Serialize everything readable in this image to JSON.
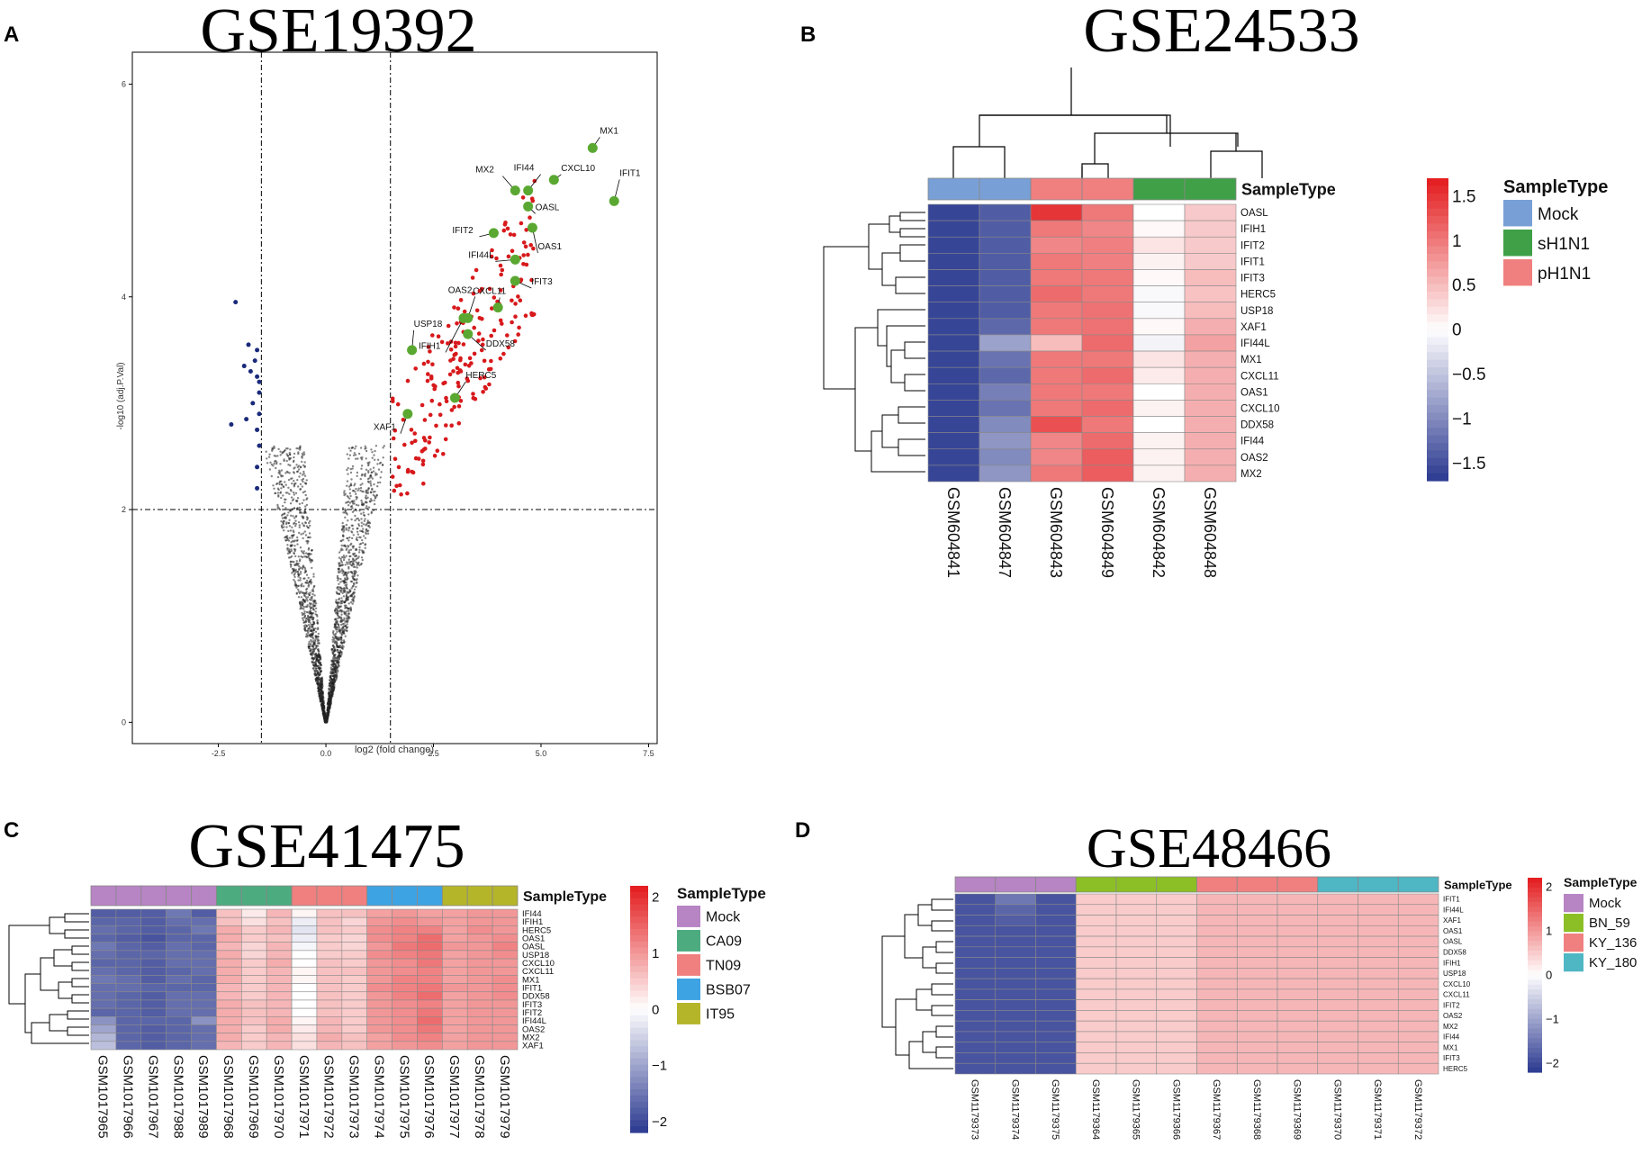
{
  "panels": {
    "A": {
      "letter": "A",
      "title": "GSE19392"
    },
    "B": {
      "letter": "B",
      "title": "GSE24533"
    },
    "C": {
      "letter": "C",
      "title": "GSE41475"
    },
    "D": {
      "letter": "D",
      "title": "GSE48466"
    }
  },
  "colors": {
    "up": "#d7191c",
    "down": "#1a2a7a",
    "ns": "#222222",
    "highlight": "#5aa832",
    "heat_low": "#2b3990",
    "heat_mid": "#ffffff",
    "heat_high": "#e31a1c"
  },
  "chart_data": [
    {
      "id": "A",
      "type": "scatter",
      "title": "GSE19392",
      "xlabel": "log2 (fold change)",
      "ylabel": "-log10 (adj.P.Val)",
      "xlim": [
        -4.5,
        7.7
      ],
      "ylim": [
        -0.2,
        6.3
      ],
      "x_ticks": [
        -2.5,
        0.0,
        2.5,
        5.0,
        7.5
      ],
      "x_tick_labels": [
        "-2.5",
        "0.0",
        "2.5",
        "5.0",
        "7.5"
      ],
      "y_ticks": [
        0,
        2,
        4,
        6
      ],
      "thresholds": {
        "x": [
          -1.5,
          1.5
        ],
        "y": 2
      },
      "labeled_genes": [
        {
          "gene": "MX1",
          "x": 6.2,
          "y": 5.4
        },
        {
          "gene": "IFIT1",
          "x": 6.7,
          "y": 4.9
        },
        {
          "gene": "CXCL10",
          "x": 5.3,
          "y": 5.1
        },
        {
          "gene": "MX2",
          "x": 4.4,
          "y": 5.0
        },
        {
          "gene": "IFI44",
          "x": 4.7,
          "y": 5.0
        },
        {
          "gene": "OASL",
          "x": 4.7,
          "y": 4.85
        },
        {
          "gene": "IFIT2",
          "x": 3.9,
          "y": 4.6
        },
        {
          "gene": "OAS1",
          "x": 4.8,
          "y": 4.65
        },
        {
          "gene": "IFI44L",
          "x": 4.4,
          "y": 4.35
        },
        {
          "gene": "IFIT3",
          "x": 4.4,
          "y": 4.15
        },
        {
          "gene": "CXCL11",
          "x": 4.0,
          "y": 3.9
        },
        {
          "gene": "OAS2",
          "x": 3.3,
          "y": 3.8
        },
        {
          "gene": "USP18",
          "x": 2.0,
          "y": 3.5
        },
        {
          "gene": "DDX58",
          "x": 3.3,
          "y": 3.65
        },
        {
          "gene": "IFIH1",
          "x": 3.2,
          "y": 3.8
        },
        {
          "gene": "HERC5",
          "x": 3.0,
          "y": 3.05
        },
        {
          "gene": "XAF1",
          "x": 1.9,
          "y": 2.9
        }
      ],
      "down_points": [
        [
          -2.1,
          3.95
        ],
        [
          -1.8,
          3.55
        ],
        [
          -1.6,
          3.5
        ],
        [
          -1.9,
          3.35
        ],
        [
          -1.75,
          3.3
        ],
        [
          -1.6,
          3.25
        ],
        [
          -1.55,
          3.2
        ],
        [
          -1.7,
          3.0
        ],
        [
          -1.55,
          2.9
        ],
        [
          -1.85,
          2.85
        ],
        [
          -2.2,
          2.8
        ],
        [
          -1.6,
          2.75
        ],
        [
          -1.55,
          2.6
        ],
        [
          -1.6,
          2.4
        ],
        [
          -1.6,
          2.2
        ],
        [
          -1.55,
          3.1
        ],
        [
          -1.65,
          3.4
        ]
      ]
    },
    {
      "id": "B",
      "type": "heatmap",
      "title": "GSE24533",
      "annotation_title": "SampleType",
      "samples": [
        "GSM604841",
        "GSM604847",
        "GSM604843",
        "GSM604849",
        "GSM604842",
        "GSM604848"
      ],
      "sample_types": [
        "Mock",
        "Mock",
        "pH1N1",
        "pH1N1",
        "sH1N1",
        "sH1N1"
      ],
      "legend_types": [
        {
          "name": "Mock",
          "color": "#78a0d6"
        },
        {
          "name": "sH1N1",
          "color": "#3fa047"
        },
        {
          "name": "pH1N1",
          "color": "#f07f7f"
        }
      ],
      "genes": [
        "OASL",
        "IFIH1",
        "IFIT2",
        "IFIT1",
        "IFIT3",
        "HERC5",
        "USP18",
        "XAF1",
        "IFI44L",
        "MX1",
        "CXCL11",
        "OAS1",
        "CXCL10",
        "DDX58",
        "IFI44",
        "OAS2",
        "MX2"
      ],
      "values": [
        [
          -1.6,
          -1.4,
          1.5,
          1.0,
          0.0,
          0.4
        ],
        [
          -1.6,
          -1.4,
          1.0,
          0.9,
          0.05,
          0.4
        ],
        [
          -1.6,
          -1.4,
          0.9,
          0.95,
          0.2,
          0.4
        ],
        [
          -1.6,
          -1.4,
          1.0,
          0.95,
          0.1,
          0.4
        ],
        [
          -1.6,
          -1.4,
          1.0,
          1.0,
          0.05,
          0.5
        ],
        [
          -1.6,
          -1.4,
          1.1,
          1.0,
          -0.05,
          0.45
        ],
        [
          -1.6,
          -1.4,
          1.0,
          1.05,
          -0.05,
          0.5
        ],
        [
          -1.6,
          -1.3,
          1.0,
          1.05,
          0.05,
          0.6
        ],
        [
          -1.6,
          -0.8,
          0.5,
          1.1,
          -0.1,
          0.7
        ],
        [
          -1.6,
          -1.2,
          1.0,
          1.0,
          0.2,
          0.6
        ],
        [
          -1.6,
          -1.3,
          1.0,
          1.1,
          0.15,
          0.6
        ],
        [
          -1.6,
          -1.1,
          1.0,
          1.0,
          0.0,
          0.6
        ],
        [
          -1.6,
          -1.2,
          1.0,
          1.1,
          0.1,
          0.6
        ],
        [
          -1.6,
          -1.0,
          1.3,
          1.0,
          0.0,
          0.6
        ],
        [
          -1.6,
          -0.9,
          0.9,
          1.1,
          0.1,
          0.6
        ],
        [
          -1.6,
          -1.0,
          0.9,
          1.2,
          0.1,
          0.6
        ],
        [
          -1.6,
          -0.9,
          1.0,
          1.2,
          0.1,
          0.6
        ]
      ],
      "scale_ticks": [
        1.5,
        1,
        0.5,
        0,
        -0.5,
        -1,
        -1.5
      ],
      "scale_tick_labels": [
        "1.5",
        "1",
        "0.5",
        "0",
        "−0.5",
        "−1",
        "−1.5"
      ],
      "scale_range": [
        -1.7,
        1.7
      ]
    },
    {
      "id": "C",
      "type": "heatmap",
      "title": "GSE41475",
      "annotation_title": "SampleType",
      "samples": [
        "GSM1017965",
        "GSM1017966",
        "GSM1017967",
        "GSM1017988",
        "GSM1017989",
        "GSM1017968",
        "GSM1017969",
        "GSM1017970",
        "GSM1017971",
        "GSM1017972",
        "GSM1017973",
        "GSM1017974",
        "GSM1017975",
        "GSM1017976",
        "GSM1017977",
        "GSM1017978",
        "GSM1017979"
      ],
      "sample_types": [
        "Mock",
        "Mock",
        "Mock",
        "Mock",
        "Mock",
        "CA09",
        "CA09",
        "CA09",
        "TN09",
        "TN09",
        "TN09",
        "BSB07",
        "BSB07",
        "BSB07",
        "IT95",
        "IT95",
        "IT95"
      ],
      "legend_types": [
        {
          "name": "Mock",
          "color": "#b784c4"
        },
        {
          "name": "CA09",
          "color": "#4dab80"
        },
        {
          "name": "TN09",
          "color": "#f07f7f"
        },
        {
          "name": "BSB07",
          "color": "#3ea3e3"
        },
        {
          "name": "IT95",
          "color": "#b5b52a"
        }
      ],
      "genes": [
        "IFI44",
        "IFIH1",
        "HERC5",
        "OAS1",
        "OASL",
        "USP18",
        "CXCL10",
        "CXCL11",
        "MX1",
        "IFIT1",
        "DDX58",
        "IFIT3",
        "IFIT2",
        "IFI44L",
        "OAS2",
        "MX2",
        "XAF1"
      ],
      "values": [
        [
          -1.8,
          -1.8,
          -1.8,
          -1.5,
          -1.8,
          0.6,
          0.2,
          0.7,
          0.1,
          0.6,
          0.6,
          0.9,
          1.0,
          0.9,
          0.9,
          1.0,
          1.0
        ],
        [
          -1.7,
          -1.7,
          -1.8,
          -1.6,
          -1.6,
          0.6,
          0.3,
          0.6,
          -0.2,
          0.6,
          0.4,
          1.0,
          1.1,
          1.0,
          0.9,
          1.0,
          1.0
        ],
        [
          -1.6,
          -1.7,
          -1.8,
          -1.7,
          -1.5,
          0.8,
          0.5,
          0.7,
          -0.3,
          0.6,
          0.5,
          1.1,
          1.2,
          1.2,
          0.9,
          1.1,
          1.0
        ],
        [
          -1.7,
          -1.8,
          -1.9,
          -1.7,
          -1.7,
          0.8,
          0.5,
          0.6,
          -0.2,
          0.5,
          0.4,
          1.1,
          1.2,
          1.4,
          0.9,
          1.0,
          1.1
        ],
        [
          -1.5,
          -1.7,
          -1.8,
          -1.6,
          -1.7,
          0.7,
          0.4,
          0.7,
          -0.1,
          0.5,
          0.4,
          1.0,
          1.3,
          1.4,
          1.0,
          1.0,
          1.2
        ],
        [
          -1.6,
          -1.7,
          -1.7,
          -1.6,
          -1.6,
          0.8,
          0.4,
          0.7,
          0.0,
          0.5,
          0.5,
          1.1,
          1.2,
          1.3,
          0.9,
          1.0,
          1.1
        ],
        [
          -1.7,
          -1.7,
          -1.8,
          -1.6,
          -1.6,
          0.8,
          0.5,
          0.8,
          0.0,
          0.6,
          0.5,
          1.0,
          1.1,
          1.3,
          0.9,
          1.0,
          1.0
        ],
        [
          -1.6,
          -1.7,
          -1.8,
          -1.7,
          -1.6,
          0.8,
          0.5,
          0.7,
          0.1,
          0.6,
          0.6,
          1.0,
          1.1,
          1.2,
          0.9,
          1.0,
          1.0
        ],
        [
          -1.5,
          -1.6,
          -1.8,
          -1.6,
          -1.7,
          0.8,
          0.5,
          0.7,
          0.1,
          0.6,
          0.5,
          1.0,
          1.2,
          1.2,
          0.9,
          1.0,
          1.1
        ],
        [
          -1.6,
          -1.6,
          -1.7,
          -1.7,
          -1.7,
          0.7,
          0.5,
          0.7,
          0.0,
          0.6,
          0.5,
          1.1,
          1.2,
          1.3,
          1.0,
          1.0,
          1.1
        ],
        [
          -1.6,
          -1.7,
          -1.8,
          -1.6,
          -1.6,
          0.7,
          0.5,
          0.7,
          0.0,
          0.6,
          0.5,
          1.0,
          1.2,
          1.4,
          0.9,
          1.0,
          1.1
        ],
        [
          -1.6,
          -1.7,
          -1.8,
          -1.6,
          -1.6,
          0.8,
          0.6,
          0.7,
          0.0,
          0.6,
          0.5,
          1.0,
          1.1,
          1.2,
          0.9,
          1.0,
          1.0
        ],
        [
          -1.7,
          -1.7,
          -1.8,
          -1.6,
          -1.6,
          0.8,
          0.6,
          0.7,
          0.0,
          0.6,
          0.5,
          1.0,
          1.1,
          1.3,
          0.9,
          1.0,
          1.0
        ],
        [
          -1.2,
          -1.7,
          -1.7,
          -1.7,
          -1.2,
          0.8,
          0.6,
          0.8,
          0.1,
          0.7,
          0.5,
          1.0,
          1.1,
          1.4,
          0.9,
          1.0,
          1.0
        ],
        [
          -1.0,
          -1.7,
          -1.8,
          -1.7,
          -1.6,
          0.8,
          0.5,
          0.8,
          0.2,
          0.7,
          0.5,
          1.0,
          1.1,
          1.3,
          0.9,
          1.0,
          1.0
        ],
        [
          -0.8,
          -1.7,
          -1.8,
          -1.7,
          -1.6,
          0.8,
          0.5,
          0.7,
          0.3,
          0.8,
          0.6,
          0.9,
          1.1,
          1.2,
          0.9,
          1.0,
          1.0
        ],
        [
          -0.7,
          -1.7,
          -1.8,
          -1.7,
          -1.6,
          0.7,
          0.5,
          0.7,
          0.3,
          0.7,
          0.6,
          0.9,
          1.0,
          1.1,
          0.9,
          1.0,
          1.0
        ]
      ],
      "scale_ticks": [
        2,
        1,
        0,
        -1,
        -2
      ],
      "scale_tick_labels": [
        "2",
        "1",
        "0",
        "−1",
        "−2"
      ],
      "scale_range": [
        -2.2,
        2.2
      ]
    },
    {
      "id": "D",
      "type": "heatmap",
      "title": "GSE48466",
      "annotation_title": "SampleType",
      "samples": [
        "GSM1179373",
        "GSM1179374",
        "GSM1179375",
        "GSM1179364",
        "GSM1179365",
        "GSM1179366",
        "GSM1179367",
        "GSM1179368",
        "GSM1179369",
        "GSM1179370",
        "GSM1179371",
        "GSM1179372"
      ],
      "sample_types": [
        "Mock",
        "Mock",
        "Mock",
        "BN_59",
        "BN_59",
        "BN_59",
        "KY_136",
        "KY_136",
        "KY_136",
        "KY_180",
        "KY_180",
        "KY_180"
      ],
      "legend_types": [
        {
          "name": "Mock",
          "color": "#b784c4"
        },
        {
          "name": "BN_59",
          "color": "#8cbf26"
        },
        {
          "name": "KY_136",
          "color": "#f07f7f"
        },
        {
          "name": "KY_180",
          "color": "#4fb6c4"
        }
      ],
      "genes": [
        "IFIT1",
        "IFI44L",
        "XAF1",
        "OAS1",
        "OASL",
        "DDX58",
        "IFIH1",
        "USP18",
        "CXCL10",
        "CXCL11",
        "IFIT2",
        "OAS2",
        "MX2",
        "IFI44",
        "MX1",
        "IFIT3",
        "HERC5"
      ],
      "values": [
        [
          -1.9,
          -1.5,
          -1.9,
          0.5,
          0.5,
          0.5,
          0.7,
          0.7,
          0.7,
          0.7,
          0.7,
          0.7
        ],
        [
          -1.9,
          -1.7,
          -1.9,
          0.5,
          0.5,
          0.5,
          0.7,
          0.7,
          0.7,
          0.7,
          0.7,
          0.7
        ],
        [
          -1.9,
          -1.8,
          -1.9,
          0.5,
          0.5,
          0.5,
          0.7,
          0.7,
          0.7,
          0.7,
          0.7,
          0.7
        ],
        [
          -1.9,
          -1.9,
          -1.9,
          0.5,
          0.5,
          0.5,
          0.7,
          0.7,
          0.7,
          0.7,
          0.7,
          0.7
        ],
        [
          -1.9,
          -1.9,
          -1.9,
          0.5,
          0.5,
          0.5,
          0.7,
          0.7,
          0.7,
          0.7,
          0.7,
          0.7
        ],
        [
          -1.9,
          -1.9,
          -1.9,
          0.5,
          0.5,
          0.5,
          0.7,
          0.7,
          0.7,
          0.7,
          0.7,
          0.7
        ],
        [
          -1.9,
          -1.9,
          -1.9,
          0.5,
          0.5,
          0.5,
          0.7,
          0.7,
          0.7,
          0.7,
          0.7,
          0.7
        ],
        [
          -1.9,
          -1.9,
          -1.9,
          0.5,
          0.5,
          0.5,
          0.7,
          0.7,
          0.7,
          0.7,
          0.7,
          0.7
        ],
        [
          -1.9,
          -1.9,
          -1.9,
          0.5,
          0.5,
          0.5,
          0.7,
          0.7,
          0.7,
          0.7,
          0.7,
          0.7
        ],
        [
          -1.9,
          -1.9,
          -1.9,
          0.5,
          0.5,
          0.5,
          0.7,
          0.7,
          0.7,
          0.7,
          0.7,
          0.7
        ],
        [
          -1.9,
          -1.9,
          -1.9,
          0.5,
          0.5,
          0.5,
          0.7,
          0.7,
          0.7,
          0.7,
          0.7,
          0.7
        ],
        [
          -1.9,
          -1.9,
          -1.9,
          0.5,
          0.5,
          0.5,
          0.7,
          0.7,
          0.7,
          0.7,
          0.7,
          0.7
        ],
        [
          -1.9,
          -1.9,
          -1.9,
          0.5,
          0.5,
          0.5,
          0.7,
          0.7,
          0.7,
          0.7,
          0.7,
          0.7
        ],
        [
          -1.9,
          -1.9,
          -1.9,
          0.5,
          0.5,
          0.5,
          0.7,
          0.7,
          0.7,
          0.7,
          0.7,
          0.7
        ],
        [
          -1.9,
          -1.9,
          -1.9,
          0.5,
          0.5,
          0.5,
          0.7,
          0.7,
          0.7,
          0.7,
          0.7,
          0.7
        ],
        [
          -1.9,
          -1.9,
          -1.9,
          0.5,
          0.5,
          0.5,
          0.7,
          0.7,
          0.7,
          0.7,
          0.7,
          0.7
        ],
        [
          -1.9,
          -1.9,
          -1.9,
          0.5,
          0.5,
          0.5,
          0.7,
          0.7,
          0.7,
          0.7,
          0.7,
          0.7
        ]
      ],
      "scale_ticks": [
        2,
        1,
        0,
        -1,
        -2
      ],
      "scale_tick_labels": [
        "2",
        "1",
        "0",
        "−1",
        "−2"
      ],
      "scale_range": [
        -2.2,
        2.2
      ]
    }
  ]
}
